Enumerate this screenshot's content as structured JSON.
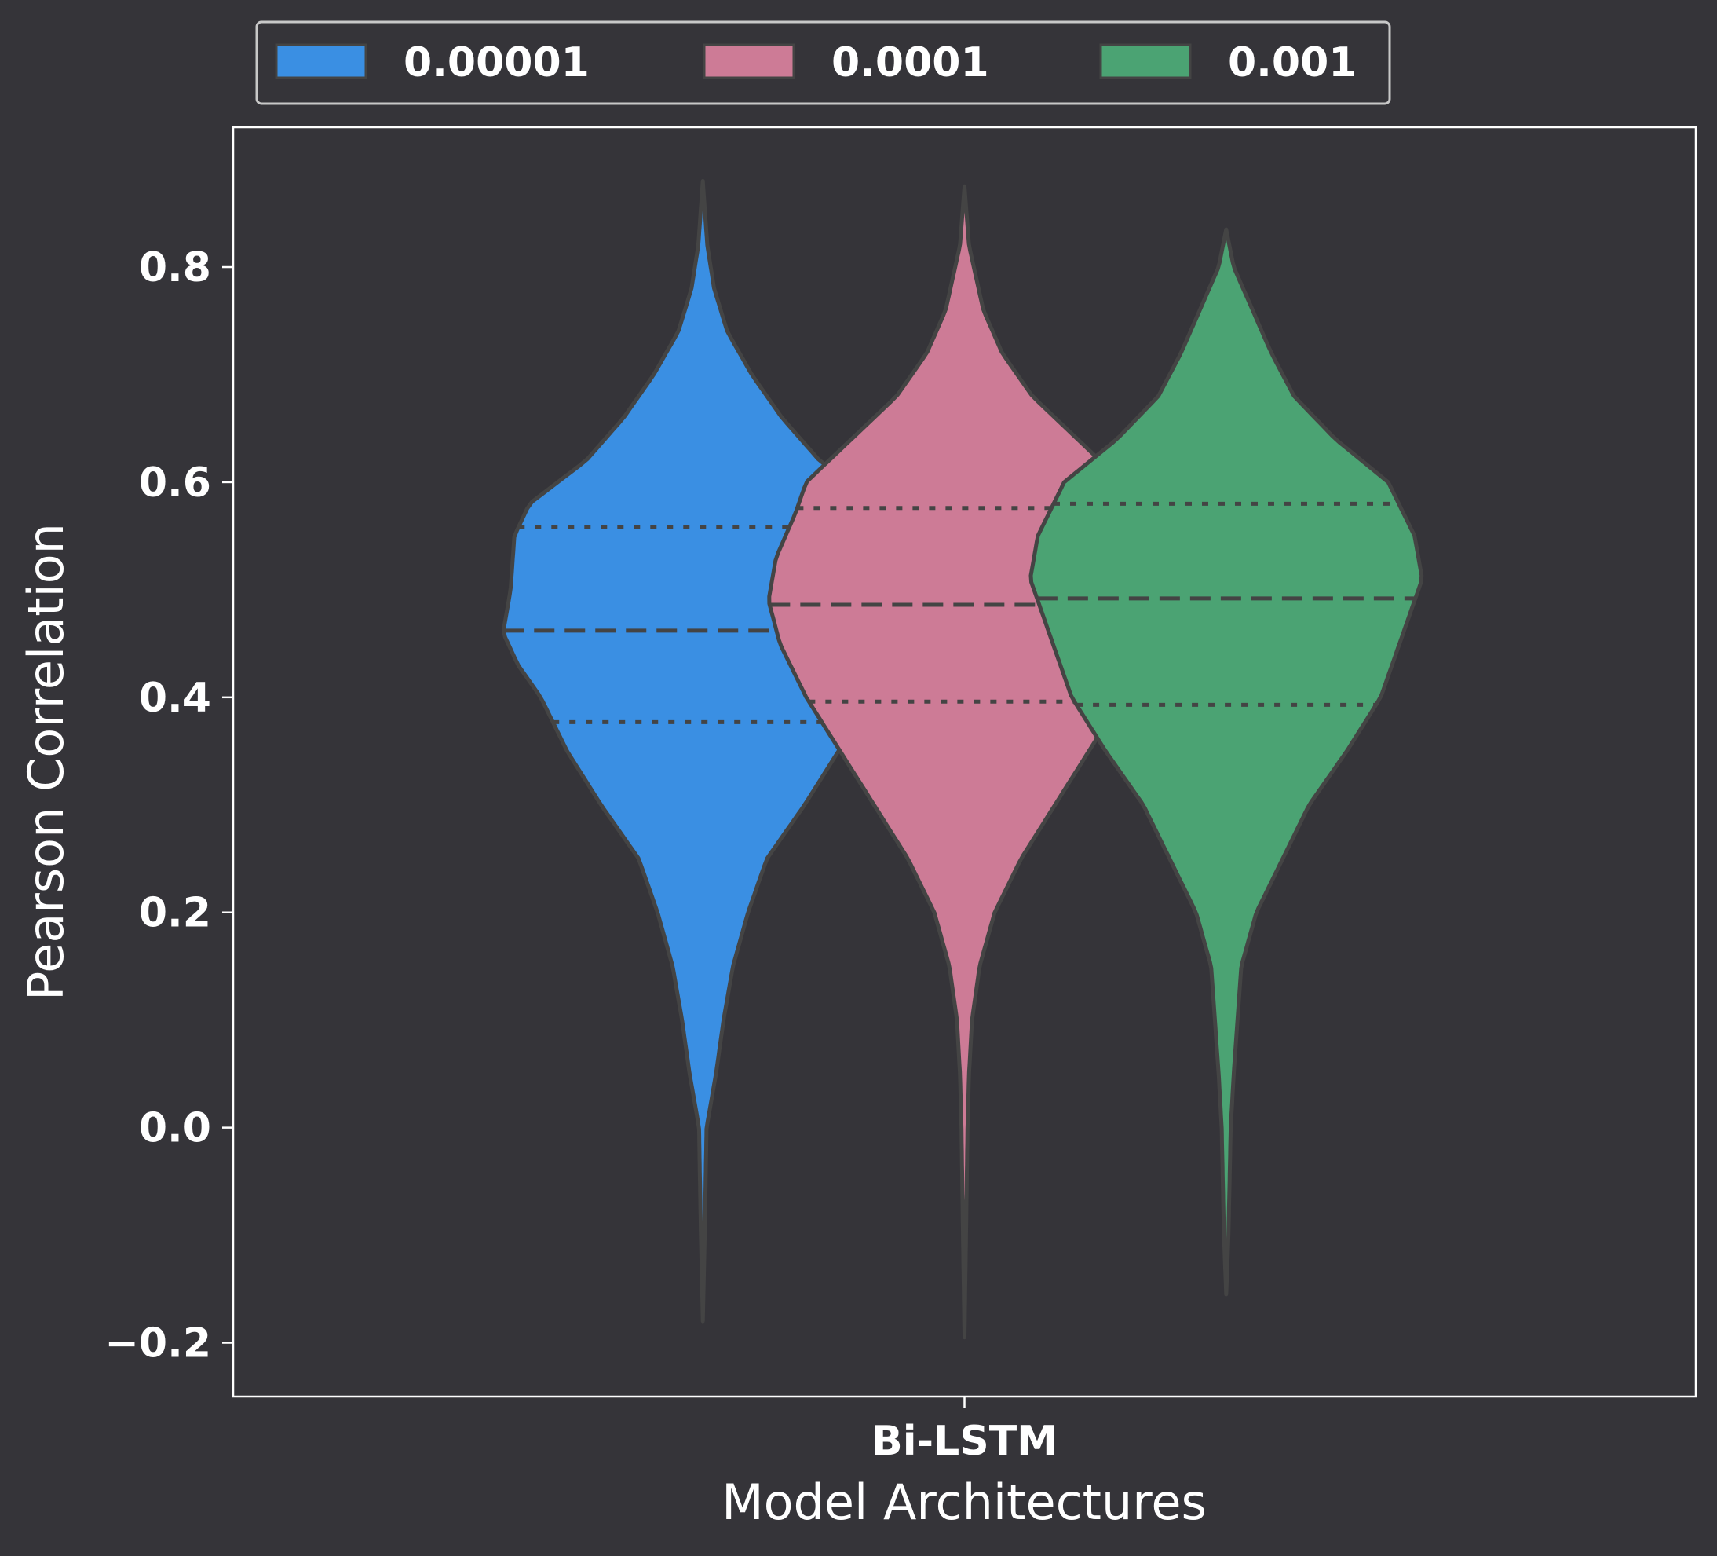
{
  "chart_data": {
    "type": "violin",
    "xlabel": "Model Architectures",
    "ylabel": "Pearson Correlation",
    "categories": [
      "Bi-LSTM"
    ],
    "ylim": [
      -0.25,
      0.93
    ],
    "yticks": [
      -0.2,
      0.0,
      0.2,
      0.4,
      0.6,
      0.8
    ],
    "ytick_labels": [
      "−0.2",
      "0.0",
      "0.2",
      "0.4",
      "0.6",
      "0.8"
    ],
    "legend": {
      "position": "top-center",
      "entries": [
        "0.00001",
        "0.0001",
        "0.001"
      ]
    },
    "colors": {
      "background": "#353439",
      "outline": "#444444",
      "axes": "#ffffff"
    },
    "series": [
      {
        "name": "0.00001",
        "color": "#3a8fe3",
        "min": -0.18,
        "max": 0.88,
        "q1": 0.377,
        "median": 0.462,
        "q3": 0.558,
        "density": [
          [
            -0.18,
            0.0
          ],
          [
            -0.1,
            0.005
          ],
          [
            0.0,
            0.01
          ],
          [
            0.05,
            0.035
          ],
          [
            0.1,
            0.055
          ],
          [
            0.15,
            0.08
          ],
          [
            0.2,
            0.12
          ],
          [
            0.25,
            0.17
          ],
          [
            0.3,
            0.27
          ],
          [
            0.35,
            0.36
          ],
          [
            0.4,
            0.43
          ],
          [
            0.43,
            0.49
          ],
          [
            0.46,
            0.53
          ],
          [
            0.5,
            0.51
          ],
          [
            0.55,
            0.5
          ],
          [
            0.58,
            0.46
          ],
          [
            0.62,
            0.31
          ],
          [
            0.66,
            0.21
          ],
          [
            0.7,
            0.13
          ],
          [
            0.74,
            0.065
          ],
          [
            0.78,
            0.03
          ],
          [
            0.82,
            0.012
          ],
          [
            0.88,
            0.0
          ]
        ]
      },
      {
        "name": "0.0001",
        "color": "#cd7b96",
        "min": -0.195,
        "max": 0.875,
        "q1": 0.396,
        "median": 0.486,
        "q3": 0.576,
        "density": [
          [
            -0.195,
            0.0
          ],
          [
            -0.1,
            0.004
          ],
          [
            0.0,
            0.008
          ],
          [
            0.05,
            0.012
          ],
          [
            0.1,
            0.02
          ],
          [
            0.15,
            0.04
          ],
          [
            0.2,
            0.08
          ],
          [
            0.25,
            0.15
          ],
          [
            0.3,
            0.24
          ],
          [
            0.35,
            0.33
          ],
          [
            0.4,
            0.42
          ],
          [
            0.45,
            0.49
          ],
          [
            0.49,
            0.52
          ],
          [
            0.53,
            0.5
          ],
          [
            0.57,
            0.45
          ],
          [
            0.6,
            0.42
          ],
          [
            0.64,
            0.3
          ],
          [
            0.68,
            0.18
          ],
          [
            0.72,
            0.1
          ],
          [
            0.76,
            0.05
          ],
          [
            0.82,
            0.012
          ],
          [
            0.875,
            0.0
          ]
        ]
      },
      {
        "name": "0.001",
        "color": "#4ba373",
        "min": -0.155,
        "max": 0.835,
        "q1": 0.393,
        "median": 0.492,
        "q3": 0.58,
        "density": [
          [
            -0.155,
            0.0
          ],
          [
            -0.1,
            0.006
          ],
          [
            0.0,
            0.012
          ],
          [
            0.05,
            0.02
          ],
          [
            0.1,
            0.03
          ],
          [
            0.15,
            0.04
          ],
          [
            0.2,
            0.08
          ],
          [
            0.25,
            0.15
          ],
          [
            0.3,
            0.22
          ],
          [
            0.35,
            0.32
          ],
          [
            0.4,
            0.41
          ],
          [
            0.45,
            0.46
          ],
          [
            0.51,
            0.52
          ],
          [
            0.55,
            0.5
          ],
          [
            0.6,
            0.43
          ],
          [
            0.64,
            0.29
          ],
          [
            0.68,
            0.18
          ],
          [
            0.72,
            0.12
          ],
          [
            0.76,
            0.07
          ],
          [
            0.8,
            0.02
          ],
          [
            0.835,
            0.0
          ]
        ]
      }
    ]
  }
}
